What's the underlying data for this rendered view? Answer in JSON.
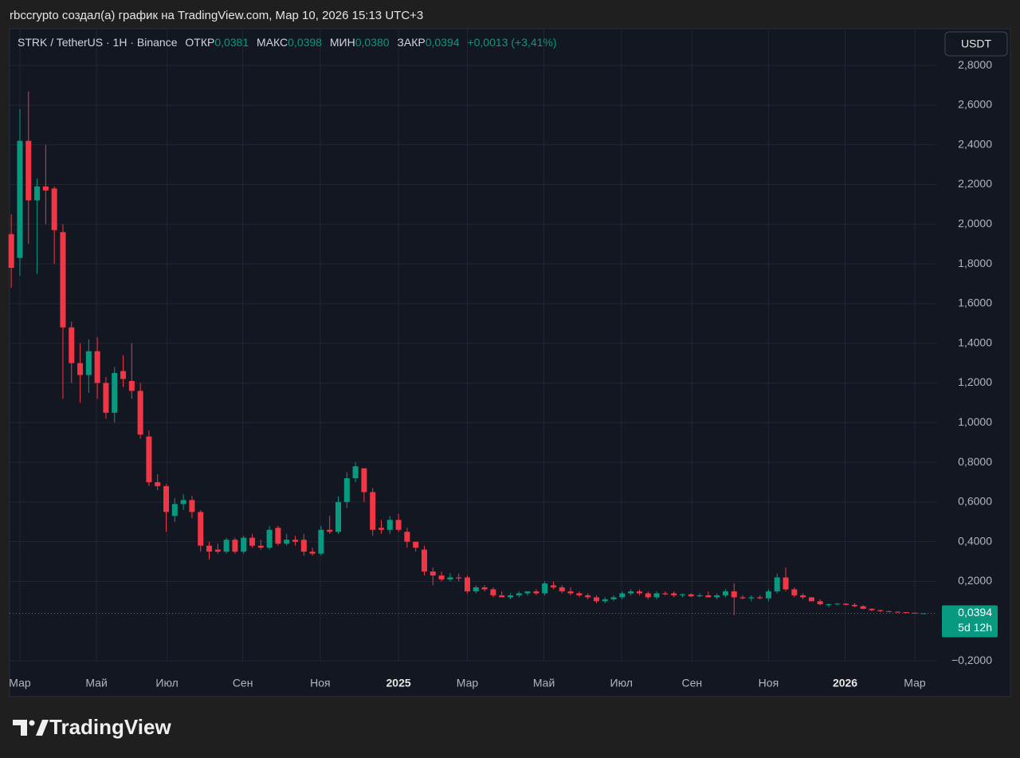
{
  "header": {
    "title": "rbccrypto создал(а) график на TradingView.com, Мар 10, 2026 15:13 UTC+3"
  },
  "legend": {
    "symbol": "STRK / TetherUS · 1H · Binance",
    "open_label": "ОТКР",
    "open": "0,0381",
    "high_label": "МАКС",
    "high": "0,0398",
    "low_label": "МИН",
    "low": "0,0380",
    "close_label": "ЗАКР",
    "close": "0,0394",
    "change": "+0,0013 (+3,41%)"
  },
  "currency": "USDT",
  "price_tag": {
    "price": "0,0394",
    "countdown": "5d 12h"
  },
  "footer": {
    "brand": "TradingView"
  },
  "chart_data": {
    "type": "candlestick",
    "up_color": "#089981",
    "down_color": "#f23645",
    "grid": true,
    "ylim": [
      -0.264,
      2.969
    ],
    "yticks": [
      {
        "value": -0.2,
        "label": "−0,2000"
      },
      {
        "value": 0.2,
        "label": "0,2000"
      },
      {
        "value": 0.4,
        "label": "0,4000"
      },
      {
        "value": 0.6,
        "label": "0,6000"
      },
      {
        "value": 0.8,
        "label": "0,8000"
      },
      {
        "value": 1.0,
        "label": "1,0000"
      },
      {
        "value": 1.2,
        "label": "1,2000"
      },
      {
        "value": 1.4,
        "label": "1,4000"
      },
      {
        "value": 1.6,
        "label": "1,6000"
      },
      {
        "value": 1.8,
        "label": "1,8000"
      },
      {
        "value": 2.0,
        "label": "2,0000"
      },
      {
        "value": 2.2,
        "label": "2,2000"
      },
      {
        "value": 2.4,
        "label": "2,4000"
      },
      {
        "value": 2.6,
        "label": "2,6000"
      },
      {
        "value": 2.8,
        "label": "2,8000"
      }
    ],
    "xlim": [
      -0.2,
      107.5
    ],
    "xticks": [
      {
        "value": 1.0,
        "label": "Мар"
      },
      {
        "value": 9.9,
        "label": "Май"
      },
      {
        "value": 18.1,
        "label": "Июл"
      },
      {
        "value": 26.9,
        "label": "Сен"
      },
      {
        "value": 35.9,
        "label": "Ноя"
      },
      {
        "value": 45,
        "label": "2025"
      },
      {
        "value": 53,
        "label": "Мар"
      },
      {
        "value": 61.9,
        "label": "Май"
      },
      {
        "value": 70.9,
        "label": "Июл"
      },
      {
        "value": 79.1,
        "label": "Сен"
      },
      {
        "value": 88,
        "label": "Ноя"
      },
      {
        "value": 96.9,
        "label": "2026"
      },
      {
        "value": 105,
        "label": "Мар"
      }
    ],
    "candles": [
      [
        1.95,
        2.05,
        1.68,
        1.78
      ],
      [
        1.83,
        2.58,
        1.74,
        2.42
      ],
      [
        2.42,
        2.67,
        1.9,
        2.12
      ],
      [
        2.12,
        2.23,
        1.75,
        2.19
      ],
      [
        2.19,
        2.4,
        2.0,
        2.17
      ],
      [
        2.18,
        2.19,
        1.8,
        1.97
      ],
      [
        1.96,
        2.0,
        1.12,
        1.48
      ],
      [
        1.48,
        1.51,
        1.2,
        1.3
      ],
      [
        1.3,
        1.4,
        1.1,
        1.24
      ],
      [
        1.24,
        1.42,
        1.15,
        1.36
      ],
      [
        1.36,
        1.43,
        1.12,
        1.2
      ],
      [
        1.2,
        1.23,
        1.02,
        1.05
      ],
      [
        1.05,
        1.28,
        1.0,
        1.25
      ],
      [
        1.26,
        1.34,
        1.18,
        1.22
      ],
      [
        1.21,
        1.4,
        1.12,
        1.16
      ],
      [
        1.16,
        1.2,
        0.92,
        0.94
      ],
      [
        0.93,
        0.96,
        0.68,
        0.7
      ],
      [
        0.7,
        0.74,
        0.66,
        0.68
      ],
      [
        0.68,
        0.69,
        0.45,
        0.55
      ],
      [
        0.53,
        0.62,
        0.5,
        0.59
      ],
      [
        0.59,
        0.64,
        0.56,
        0.61
      ],
      [
        0.61,
        0.63,
        0.52,
        0.55
      ],
      [
        0.55,
        0.56,
        0.35,
        0.38
      ],
      [
        0.38,
        0.4,
        0.31,
        0.35
      ],
      [
        0.36,
        0.39,
        0.34,
        0.35
      ],
      [
        0.35,
        0.42,
        0.34,
        0.41
      ],
      [
        0.41,
        0.42,
        0.34,
        0.35
      ],
      [
        0.35,
        0.43,
        0.34,
        0.42
      ],
      [
        0.42,
        0.44,
        0.37,
        0.38
      ],
      [
        0.38,
        0.41,
        0.36,
        0.37
      ],
      [
        0.37,
        0.48,
        0.36,
        0.46
      ],
      [
        0.47,
        0.48,
        0.38,
        0.39
      ],
      [
        0.39,
        0.44,
        0.38,
        0.41
      ],
      [
        0.41,
        0.43,
        0.38,
        0.4
      ],
      [
        0.41,
        0.44,
        0.33,
        0.35
      ],
      [
        0.35,
        0.37,
        0.33,
        0.34
      ],
      [
        0.34,
        0.48,
        0.33,
        0.46
      ],
      [
        0.46,
        0.53,
        0.44,
        0.45
      ],
      [
        0.45,
        0.63,
        0.44,
        0.6
      ],
      [
        0.6,
        0.75,
        0.57,
        0.72
      ],
      [
        0.72,
        0.8,
        0.7,
        0.78
      ],
      [
        0.77,
        0.77,
        0.6,
        0.65
      ],
      [
        0.65,
        0.67,
        0.43,
        0.46
      ],
      [
        0.47,
        0.51,
        0.44,
        0.46
      ],
      [
        0.46,
        0.53,
        0.44,
        0.51
      ],
      [
        0.51,
        0.54,
        0.45,
        0.46
      ],
      [
        0.45,
        0.47,
        0.37,
        0.4
      ],
      [
        0.4,
        0.4,
        0.35,
        0.37
      ],
      [
        0.36,
        0.38,
        0.23,
        0.25
      ],
      [
        0.25,
        0.27,
        0.18,
        0.23
      ],
      [
        0.23,
        0.25,
        0.2,
        0.21
      ],
      [
        0.21,
        0.24,
        0.2,
        0.22
      ],
      [
        0.22,
        0.24,
        0.2,
        0.215
      ],
      [
        0.22,
        0.23,
        0.14,
        0.15
      ],
      [
        0.15,
        0.18,
        0.14,
        0.17
      ],
      [
        0.17,
        0.18,
        0.15,
        0.16
      ],
      [
        0.16,
        0.17,
        0.12,
        0.13
      ],
      [
        0.13,
        0.15,
        0.12,
        0.12
      ],
      [
        0.12,
        0.14,
        0.11,
        0.13
      ],
      [
        0.13,
        0.15,
        0.12,
        0.14
      ],
      [
        0.14,
        0.15,
        0.13,
        0.15
      ],
      [
        0.15,
        0.16,
        0.13,
        0.14
      ],
      [
        0.14,
        0.2,
        0.13,
        0.19
      ],
      [
        0.18,
        0.2,
        0.16,
        0.17
      ],
      [
        0.17,
        0.18,
        0.14,
        0.15
      ],
      [
        0.15,
        0.17,
        0.13,
        0.14
      ],
      [
        0.14,
        0.15,
        0.12,
        0.13
      ],
      [
        0.13,
        0.14,
        0.11,
        0.12
      ],
      [
        0.12,
        0.13,
        0.09,
        0.1
      ],
      [
        0.1,
        0.12,
        0.09,
        0.11
      ],
      [
        0.11,
        0.13,
        0.1,
        0.12
      ],
      [
        0.12,
        0.15,
        0.11,
        0.14
      ],
      [
        0.14,
        0.16,
        0.13,
        0.15
      ],
      [
        0.15,
        0.16,
        0.13,
        0.14
      ],
      [
        0.14,
        0.15,
        0.11,
        0.12
      ],
      [
        0.12,
        0.15,
        0.11,
        0.14
      ],
      [
        0.14,
        0.15,
        0.13,
        0.135
      ],
      [
        0.14,
        0.15,
        0.12,
        0.13
      ],
      [
        0.13,
        0.14,
        0.12,
        0.135
      ],
      [
        0.135,
        0.14,
        0.12,
        0.125
      ],
      [
        0.125,
        0.14,
        0.12,
        0.13
      ],
      [
        0.13,
        0.15,
        0.12,
        0.12
      ],
      [
        0.12,
        0.14,
        0.11,
        0.13
      ],
      [
        0.13,
        0.16,
        0.12,
        0.15
      ],
      [
        0.15,
        0.19,
        0.03,
        0.12
      ],
      [
        0.12,
        0.13,
        0.11,
        0.115
      ],
      [
        0.115,
        0.13,
        0.1,
        0.12
      ],
      [
        0.12,
        0.13,
        0.11,
        0.115
      ],
      [
        0.115,
        0.16,
        0.1,
        0.15
      ],
      [
        0.15,
        0.24,
        0.14,
        0.22
      ],
      [
        0.22,
        0.27,
        0.15,
        0.16
      ],
      [
        0.16,
        0.17,
        0.12,
        0.13
      ],
      [
        0.13,
        0.14,
        0.11,
        0.12
      ],
      [
        0.12,
        0.12,
        0.1,
        0.1
      ],
      [
        0.1,
        0.11,
        0.08,
        0.085
      ],
      [
        0.08,
        0.09,
        0.07,
        0.085
      ],
      [
        0.085,
        0.09,
        0.08,
        0.088
      ],
      [
        0.088,
        0.09,
        0.08,
        0.082
      ],
      [
        0.082,
        0.09,
        0.07,
        0.075
      ],
      [
        0.075,
        0.08,
        0.06,
        0.062
      ],
      [
        0.062,
        0.065,
        0.05,
        0.055
      ],
      [
        0.055,
        0.058,
        0.046,
        0.05
      ],
      [
        0.05,
        0.052,
        0.045,
        0.047
      ],
      [
        0.047,
        0.05,
        0.042,
        0.045
      ],
      [
        0.045,
        0.046,
        0.04,
        0.042
      ],
      [
        0.042,
        0.043,
        0.038,
        0.04
      ],
      [
        0.0381,
        0.0398,
        0.038,
        0.0394
      ]
    ]
  }
}
